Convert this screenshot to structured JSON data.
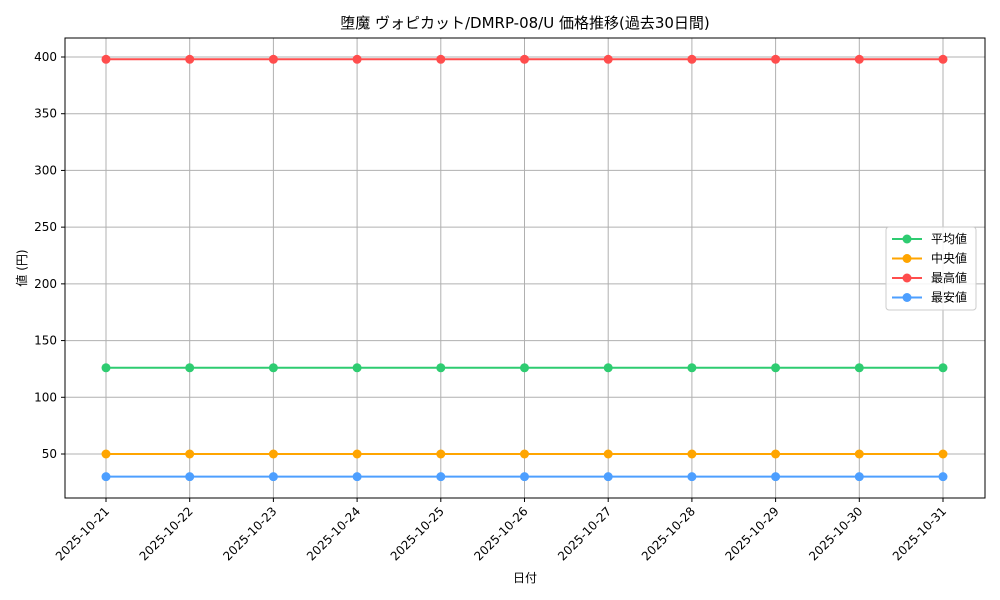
{
  "chart_data": {
    "type": "line",
    "title": "堕魔 ヴォピカット/DMRP-08/U 価格推移(過去30日間)",
    "xlabel": "日付",
    "ylabel": "値 (円)",
    "x": [
      "2025-10-21",
      "2025-10-22",
      "2025-10-23",
      "2025-10-24",
      "2025-10-25",
      "2025-10-26",
      "2025-10-27",
      "2025-10-28",
      "2025-10-29",
      "2025-10-30",
      "2025-10-31"
    ],
    "series": [
      {
        "name": "平均値",
        "color": "#2ecc71",
        "values": [
          126,
          126,
          126,
          126,
          126,
          126,
          126,
          126,
          126,
          126,
          126
        ]
      },
      {
        "name": "中央値",
        "color": "#ffa500",
        "values": [
          50,
          50,
          50,
          50,
          50,
          50,
          50,
          50,
          50,
          50,
          50
        ]
      },
      {
        "name": "最高値",
        "color": "#ff4d4d",
        "values": [
          398,
          398,
          398,
          398,
          398,
          398,
          398,
          398,
          398,
          398,
          398
        ]
      },
      {
        "name": "最安値",
        "color": "#4d9fff",
        "values": [
          30,
          30,
          30,
          30,
          30,
          30,
          30,
          30,
          30,
          30,
          30
        ]
      }
    ],
    "yticks": [
      50,
      100,
      150,
      200,
      250,
      300,
      350,
      400
    ],
    "ylim": [
      11,
      417
    ],
    "grid": true,
    "legend_position": "center right",
    "markers": "circle"
  }
}
